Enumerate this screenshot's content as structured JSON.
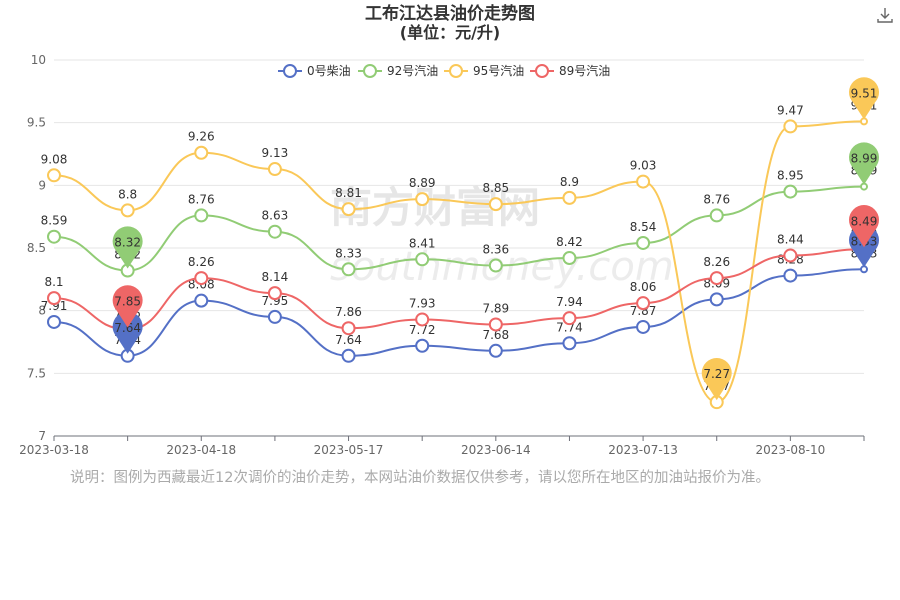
{
  "header": {
    "title": "工布江达县油价走势图",
    "subtitle": "(单位：元/升)",
    "download_icon": "download-icon"
  },
  "watermark": {
    "cn": "南方财富网",
    "en": "southmoney.com"
  },
  "note": "说明：图例为西藏最近12次调价的油价走势，本网站油价数据仅供参考，请以您所在地区的加油站报价为准。",
  "chart_data": {
    "type": "line",
    "smooth": true,
    "ylim": [
      7,
      10
    ],
    "yticks": [
      "7",
      "7.5",
      "8",
      "8.5",
      "9",
      "9.5",
      "10"
    ],
    "xtick_labels": [
      "2023-03-18",
      "2023-04-18",
      "2023-05-17",
      "2023-06-14",
      "2023-07-13",
      "2023-08-10"
    ],
    "x": [
      "2023-03-18",
      "2023-04-03",
      "2023-04-18",
      "2023-05-04",
      "2023-05-17",
      "2023-06-01",
      "2023-06-14",
      "2023-06-29",
      "2023-07-13",
      "2023-07-27",
      "2023-08-10",
      "2023-08-25"
    ],
    "grid": true,
    "legend_position": "top-center",
    "series": [
      {
        "name": "0号柴油",
        "color": "#5470c6",
        "values": [
          7.91,
          7.64,
          8.08,
          7.95,
          7.64,
          7.72,
          7.68,
          7.74,
          7.87,
          8.09,
          8.28,
          8.33
        ],
        "min_index": 1,
        "max_index": 11
      },
      {
        "name": "92号汽油",
        "color": "#91cc75",
        "values": [
          8.59,
          8.32,
          8.76,
          8.63,
          8.33,
          8.41,
          8.36,
          8.42,
          8.54,
          8.76,
          8.95,
          8.99
        ],
        "min_index": 1,
        "max_index": 11
      },
      {
        "name": "95号汽油",
        "color": "#fac858",
        "values": [
          9.08,
          8.8,
          9.26,
          9.13,
          8.81,
          8.89,
          8.85,
          8.9,
          9.03,
          7.27,
          9.47,
          9.51
        ],
        "min_index": 9,
        "max_index": 11
      },
      {
        "name": "89号汽油",
        "color": "#ee6666",
        "values": [
          8.1,
          7.85,
          8.26,
          8.14,
          7.86,
          7.93,
          7.89,
          7.94,
          8.06,
          8.26,
          8.44,
          8.49
        ],
        "min_index": 1,
        "max_index": 11
      }
    ]
  }
}
